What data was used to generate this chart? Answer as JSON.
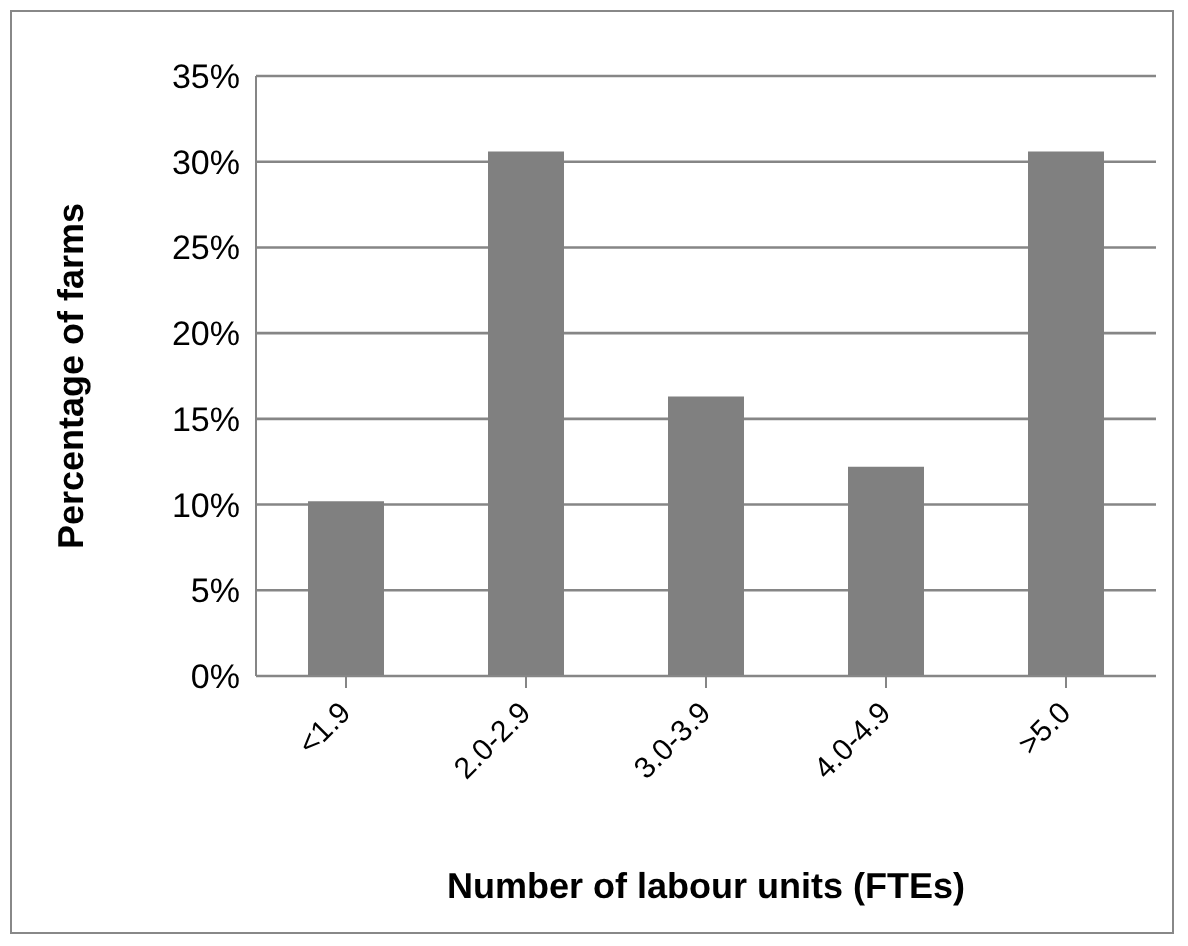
{
  "chart_data": {
    "type": "bar",
    "xlabel": "Number of labour units (FTEs)",
    "ylabel": "Percentage of farms",
    "categories": [
      "<1.9",
      "2.0-2.9",
      "3.0-3.9",
      "4.0-4.9",
      ">5.0"
    ],
    "values": [
      10.2,
      30.6,
      16.3,
      12.2,
      30.6
    ],
    "color": "#808080",
    "ylim": [
      0,
      35
    ],
    "yticks": [
      {
        "value": 0,
        "label": "0%"
      },
      {
        "value": 5,
        "label": "5%"
      },
      {
        "value": 10,
        "label": "10%"
      },
      {
        "value": 15,
        "label": "15%"
      },
      {
        "value": 20,
        "label": "20%"
      },
      {
        "value": 25,
        "label": "25%"
      },
      {
        "value": 30,
        "label": "30%"
      },
      {
        "value": 35,
        "label": "35%"
      }
    ],
    "grid": "y",
    "legend": false
  }
}
